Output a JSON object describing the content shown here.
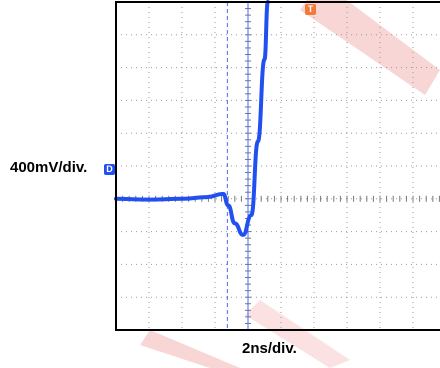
{
  "chart_data": {
    "type": "line",
    "title": "",
    "xlabel": "2ns/div.",
    "ylabel": "400mV/div.",
    "grid": true,
    "x_unit": "ns",
    "y_unit": "mV",
    "xlim": [
      -8,
      12
    ],
    "ylim": [
      -1600,
      2400
    ],
    "marker_lines_x": [
      -1.25,
      0
    ],
    "channel_marker": "D",
    "trigger_marker": "T",
    "series": [
      {
        "name": "",
        "x": [
          -8,
          -6,
          -4,
          -2.5,
          -1.5,
          -1.2,
          -0.8,
          -0.3,
          0.2,
          0.6,
          1.0,
          1.2
        ],
        "y": [
          0,
          -10,
          0,
          20,
          60,
          -80,
          -300,
          -440,
          -200,
          700,
          1700,
          2400
        ]
      }
    ],
    "colors": {
      "trace": "#2050f0",
      "cursor": "#4a6af5",
      "trigger_marker": "#f07a3a",
      "grid": "#9a9a9a",
      "watermark": "#f4c0c0"
    }
  }
}
